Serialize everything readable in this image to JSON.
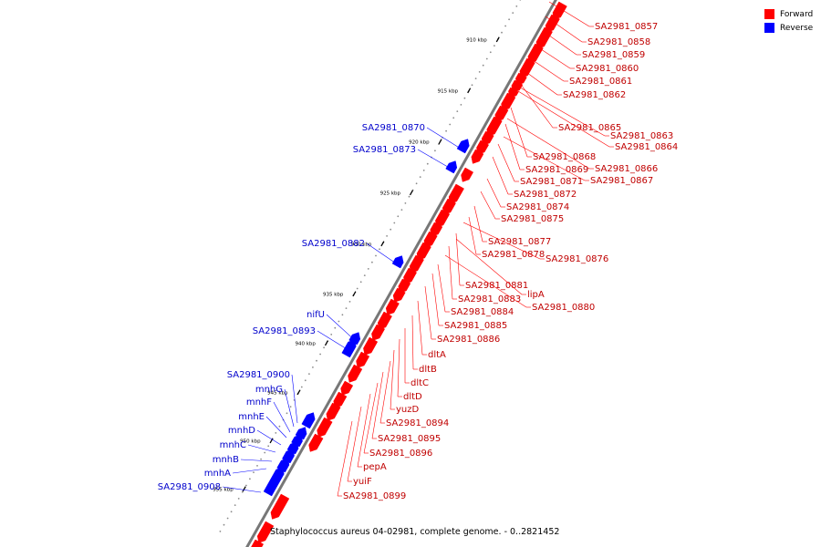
{
  "legend": {
    "forward": {
      "label": "Forward",
      "color": "#ff0000"
    },
    "reverse": {
      "label": "Reverse",
      "color": "#0000ff"
    }
  },
  "caption": "Staphylococcus aureus 04-02981, complete genome. - 0..2821452",
  "backbone_color": "#777777",
  "ticks": [
    "910 kbp",
    "915 kbp",
    "920 kbp",
    "925 kbp",
    "930 kbp",
    "935 kbp",
    "940 kbp",
    "945 kbp",
    "950 kbp",
    "955 kbp"
  ],
  "forward_genes": [
    "SA2981_0857",
    "SA2981_0858",
    "SA2981_0859",
    "SA2981_0860",
    "SA2981_0861",
    "SA2981_0862",
    "SA2981_0865",
    "SA2981_0863",
    "SA2981_0864",
    "SA2981_0868",
    "SA2981_0866",
    "SA2981_0869",
    "SA2981_0867",
    "SA2981_0871",
    "SA2981_0872",
    "SA2981_0874",
    "SA2981_0875",
    "SA2981_0877",
    "SA2981_0878",
    "SA2981_0876",
    "SA2981_0881",
    "lipA",
    "SA2981_0883",
    "SA2981_0880",
    "SA2981_0884",
    "SA2981_0885",
    "SA2981_0886",
    "dltA",
    "dltB",
    "dltC",
    "dltD",
    "yuzD",
    "SA2981_0894",
    "SA2981_0895",
    "SA2981_0896",
    "pepA",
    "yuiF",
    "SA2981_0899"
  ],
  "reverse_genes": [
    "SA2981_0870",
    "SA2981_0873",
    "SA2981_0882",
    "nifU",
    "SA2981_0893",
    "SA2981_0900",
    "mnhG",
    "mnhF",
    "mnhE",
    "mnhD",
    "mnhC",
    "mnhB",
    "mnhA",
    "SA2981_0908"
  ]
}
